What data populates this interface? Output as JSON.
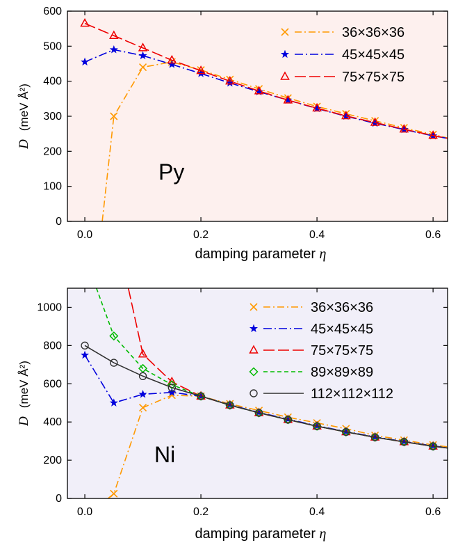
{
  "chart_data": [
    {
      "type": "line",
      "panel_label": "Py",
      "background": "#fdf0ee",
      "xlabel_text": "damping parameter ",
      "xlabel_symbol": "η",
      "ylabel_symbol": "D",
      "ylabel_units": "(meV Å²)",
      "xlim": [
        -0.03,
        0.625
      ],
      "ylim": [
        0,
        600
      ],
      "xticks": [
        0.0,
        0.2,
        0.4,
        0.6
      ],
      "xtick_labels": [
        "0.0",
        "0.2",
        "0.4",
        "0.6"
      ],
      "yticks": [
        0,
        100,
        200,
        300,
        400,
        500,
        600
      ],
      "ytick_labels": [
        "0",
        "100",
        "200",
        "300",
        "400",
        "500",
        "600"
      ],
      "legend_position": "top-right",
      "series": [
        {
          "name": "36×36×36",
          "color": "#ff9900",
          "marker": "x",
          "dash": "10,4,2,4",
          "x": [
            0.03,
            0.05,
            0.1,
            0.15,
            0.2,
            0.25,
            0.3,
            0.35,
            0.4,
            0.45,
            0.5,
            0.55,
            0.6,
            0.625
          ],
          "y": [
            0,
            300,
            440,
            455,
            432,
            405,
            378,
            352,
            328,
            307,
            287,
            267,
            248,
            238
          ],
          "marker_x": [
            0.05,
            0.1,
            0.15,
            0.2,
            0.25,
            0.3,
            0.35,
            0.4,
            0.45,
            0.5,
            0.55,
            0.6
          ],
          "marker_y": [
            300,
            440,
            455,
            432,
            405,
            378,
            352,
            328,
            307,
            287,
            267,
            248
          ]
        },
        {
          "name": "45×45×45",
          "color": "#0000dd",
          "marker": "star",
          "dash": "12,4,2,4",
          "x": [
            0.0,
            0.05,
            0.1,
            0.15,
            0.2,
            0.25,
            0.3,
            0.35,
            0.4,
            0.45,
            0.5,
            0.55,
            0.6,
            0.625
          ],
          "y": [
            455,
            490,
            473,
            448,
            422,
            395,
            370,
            346,
            322,
            300,
            280,
            262,
            244,
            237
          ],
          "marker_x": [
            0.0,
            0.05,
            0.1,
            0.15,
            0.2,
            0.25,
            0.3,
            0.35,
            0.4,
            0.45,
            0.5,
            0.55,
            0.6
          ],
          "marker_y": [
            455,
            490,
            473,
            448,
            422,
            395,
            370,
            346,
            322,
            300,
            280,
            262,
            244
          ]
        },
        {
          "name": "75×75×75",
          "color": "#ee0000",
          "marker": "triangle",
          "dash": "16,5",
          "x": [
            0.0,
            0.05,
            0.1,
            0.15,
            0.2,
            0.25,
            0.3,
            0.35,
            0.4,
            0.45,
            0.5,
            0.55,
            0.6,
            0.625
          ],
          "y": [
            565,
            530,
            495,
            460,
            430,
            400,
            372,
            346,
            323,
            301,
            282,
            263,
            245,
            237
          ],
          "marker_x": [
            0.0,
            0.05,
            0.1,
            0.15,
            0.2,
            0.25,
            0.3,
            0.35,
            0.4,
            0.45,
            0.5,
            0.55,
            0.6
          ],
          "marker_y": [
            565,
            530,
            495,
            460,
            430,
            400,
            372,
            346,
            323,
            301,
            282,
            263,
            245
          ]
        }
      ]
    },
    {
      "type": "line",
      "panel_label": "Ni",
      "background": "#f1eff9",
      "xlabel_text": "damping parameter ",
      "xlabel_symbol": "η",
      "ylabel_symbol": "D",
      "ylabel_units": "(meV Å²)",
      "xlim": [
        -0.03,
        0.625
      ],
      "ylim": [
        0,
        1100
      ],
      "xticks": [
        0.0,
        0.2,
        0.4,
        0.6
      ],
      "xtick_labels": [
        "0.0",
        "0.2",
        "0.4",
        "0.6"
      ],
      "yticks": [
        0,
        200,
        400,
        600,
        800,
        1000
      ],
      "ytick_labels": [
        "0",
        "200",
        "400",
        "600",
        "800",
        "1000"
      ],
      "legend_position": "top-right",
      "series": [
        {
          "name": "36×36×36",
          "color": "#ff9900",
          "marker": "x",
          "dash": "10,4,2,4",
          "x": [
            0.04,
            0.05,
            0.1,
            0.15,
            0.2,
            0.25,
            0.3,
            0.35,
            0.4,
            0.45,
            0.5,
            0.55,
            0.6,
            0.625
          ],
          "y": [
            0,
            25,
            475,
            540,
            535,
            495,
            460,
            425,
            395,
            365,
            330,
            305,
            280,
            270
          ],
          "marker_x": [
            0.05,
            0.1,
            0.15,
            0.2,
            0.25,
            0.3,
            0.35,
            0.4,
            0.45,
            0.5,
            0.55,
            0.6
          ],
          "marker_y": [
            25,
            475,
            540,
            535,
            495,
            460,
            425,
            395,
            365,
            330,
            305,
            280
          ]
        },
        {
          "name": "45×45×45",
          "color": "#0000dd",
          "marker": "star",
          "dash": "12,4,2,4",
          "x": [
            0.0,
            0.05,
            0.1,
            0.15,
            0.2,
            0.25,
            0.3,
            0.35,
            0.4,
            0.45,
            0.5,
            0.55,
            0.6,
            0.625
          ],
          "y": [
            750,
            500,
            545,
            555,
            535,
            490,
            450,
            415,
            380,
            350,
            322,
            298,
            275,
            265
          ],
          "marker_x": [
            0.0,
            0.05,
            0.1,
            0.15,
            0.2,
            0.25,
            0.3,
            0.35,
            0.4,
            0.45,
            0.5,
            0.55,
            0.6
          ],
          "marker_y": [
            750,
            500,
            545,
            555,
            535,
            490,
            450,
            415,
            380,
            350,
            322,
            298,
            275
          ]
        },
        {
          "name": "75×75×75",
          "color": "#ee0000",
          "marker": "triangle",
          "dash": "16,5",
          "x": [
            0.075,
            0.1,
            0.15,
            0.2,
            0.25,
            0.3,
            0.35,
            0.4,
            0.45,
            0.5,
            0.55,
            0.6,
            0.625
          ],
          "y": [
            1100,
            755,
            610,
            535,
            488,
            448,
            412,
            378,
            348,
            320,
            296,
            273,
            264
          ],
          "marker_x": [
            0.1,
            0.15,
            0.2,
            0.25,
            0.3,
            0.35,
            0.4,
            0.45,
            0.5,
            0.55,
            0.6
          ],
          "marker_y": [
            755,
            610,
            535,
            488,
            448,
            412,
            378,
            348,
            320,
            296,
            273
          ]
        },
        {
          "name": "89×89×89",
          "color": "#00bb00",
          "marker": "diamond",
          "dash": "6,4",
          "x": [
            0.02,
            0.05,
            0.1,
            0.15,
            0.2,
            0.25,
            0.3,
            0.35,
            0.4,
            0.45,
            0.5,
            0.55,
            0.6,
            0.625
          ],
          "y": [
            1100,
            850,
            680,
            595,
            535,
            488,
            448,
            412,
            378,
            348,
            320,
            296,
            273,
            264
          ],
          "marker_x": [
            0.05,
            0.1,
            0.15,
            0.2,
            0.25,
            0.3,
            0.35,
            0.4,
            0.45,
            0.5,
            0.55,
            0.6
          ],
          "marker_y": [
            850,
            680,
            595,
            535,
            488,
            448,
            412,
            378,
            348,
            320,
            296,
            273
          ]
        },
        {
          "name": "112×112×112",
          "color": "#333333",
          "marker": "circle",
          "dash": "",
          "x": [
            0.0,
            0.05,
            0.1,
            0.15,
            0.2,
            0.25,
            0.3,
            0.35,
            0.4,
            0.45,
            0.5,
            0.55,
            0.6,
            0.625
          ],
          "y": [
            800,
            710,
            640,
            580,
            535,
            488,
            448,
            412,
            378,
            348,
            320,
            296,
            273,
            264
          ],
          "marker_x": [
            0.0,
            0.05,
            0.1,
            0.15,
            0.2,
            0.25,
            0.3,
            0.35,
            0.4,
            0.45,
            0.5,
            0.55,
            0.6
          ],
          "marker_y": [
            800,
            710,
            640,
            580,
            535,
            488,
            448,
            412,
            378,
            348,
            320,
            296,
            273
          ]
        }
      ]
    }
  ]
}
